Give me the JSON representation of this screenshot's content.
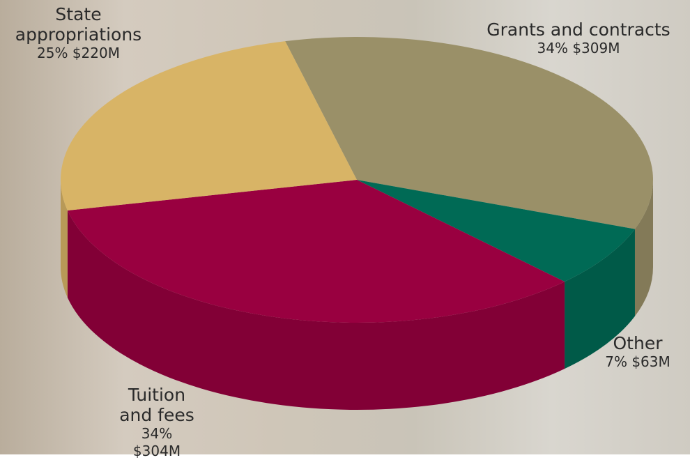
{
  "chart_data": {
    "type": "pie",
    "categories": [
      "Grants and contracts",
      "Other",
      "Tuition and fees",
      "State appropriations"
    ],
    "values": [
      309,
      63,
      304,
      220
    ],
    "value_labels": [
      "34% $309M",
      "7% $63M",
      "34% $304M",
      "25% $220M"
    ],
    "colors": [
      "#9a9068",
      "#006a55",
      "#990040",
      "#d8b466"
    ]
  }
}
